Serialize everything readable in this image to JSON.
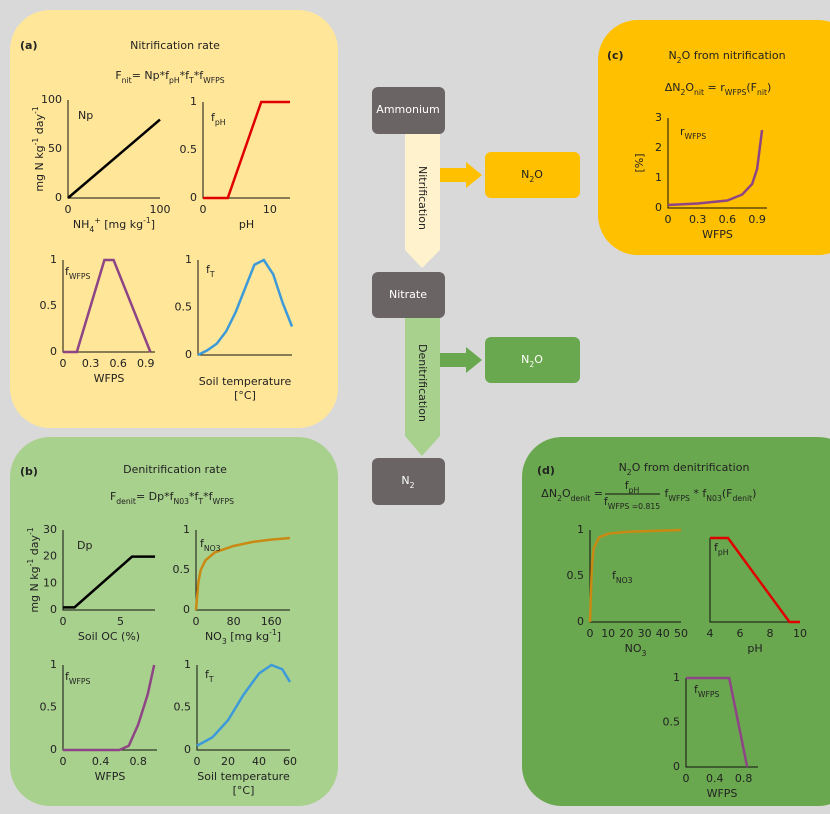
{
  "panels": [
    {
      "label": "(a)",
      "title": "Nitrification rate",
      "formula": [
        "F",
        {
          "sub": "nit"
        },
        "= Np*f",
        {
          "sub": "pH"
        },
        "*f",
        {
          "sub": "T"
        },
        "*f",
        {
          "sub": "WFPS"
        }
      ],
      "plots": [
        {
          "label": [
            "Np"
          ],
          "ylabel": [
            "mg N kg",
            {
              "sup": "-1"
            },
            " day",
            {
              "sup": "-1"
            }
          ],
          "xlabel": [
            [
              "NH",
              {
                "sub": "4"
              },
              {
                "sup": "+"
              },
              " [mg kg",
              {
                "sup": "-1"
              },
              "]"
            ]
          ],
          "xlim": [
            0,
            100
          ],
          "ylim": [
            0,
            100
          ],
          "xticks": [
            0,
            100
          ],
          "yticks": [
            0,
            50,
            100
          ],
          "x": [
            0,
            100
          ],
          "y": [
            0,
            80
          ],
          "color": "#000000"
        },
        {
          "label": [
            "f",
            {
              "sub": "pH"
            }
          ],
          "xlabel": [
            [
              "pH"
            ]
          ],
          "xlim": [
            0,
            13
          ],
          "ylim": [
            0,
            1
          ],
          "xticks": [
            0,
            10
          ],
          "yticks": [
            0,
            0.5,
            1
          ],
          "x": [
            0,
            3.7,
            8.7,
            13
          ],
          "y": [
            0,
            0,
            1,
            1
          ],
          "color": "#e00000"
        },
        {
          "label": [
            "f",
            {
              "sub": "WFPS"
            }
          ],
          "xlabel": [
            [
              "WFPS"
            ]
          ],
          "xlim": [
            0,
            1
          ],
          "ylim": [
            0,
            1
          ],
          "xticks": [
            0,
            0.3,
            0.6,
            0.9
          ],
          "yticks": [
            0,
            0.5,
            1
          ],
          "x": [
            0,
            0.15,
            0.45,
            0.55,
            0.95
          ],
          "y": [
            0,
            0,
            1,
            1,
            0
          ],
          "color": "#8e4585"
        },
        {
          "label": [
            "f",
            {
              "sub": "T"
            }
          ],
          "xlabel": [
            [
              "Soil temperature"
            ],
            [
              "[°C]"
            ]
          ],
          "xlim": [
            0,
            50
          ],
          "ylim": [
            0,
            1
          ],
          "yticks": [
            0,
            0.5,
            1
          ],
          "x": [
            0,
            5,
            10,
            15,
            20,
            25,
            30,
            35,
            40,
            45,
            50
          ],
          "y": [
            0,
            0.05,
            0.12,
            0.25,
            0.45,
            0.7,
            0.95,
            1,
            0.85,
            0.55,
            0.3
          ],
          "color": "#3d9ad9"
        }
      ]
    },
    {
      "label": "(b)",
      "title": "Denitrification rate",
      "formula": [
        "F",
        {
          "sub": "denit"
        },
        "= Dp*f",
        {
          "sub": "N03"
        },
        "*f",
        {
          "sub": "T"
        },
        "*f",
        {
          "sub": "WFPS"
        }
      ],
      "plots": [
        {
          "label": [
            "Dp"
          ],
          "ylabel": [
            "mg N kg",
            {
              "sup": "-1"
            },
            " day",
            {
              "sup": "-1"
            }
          ],
          "xlabel": [
            [
              "Soil OC (%)"
            ]
          ],
          "xlim": [
            0,
            8
          ],
          "ylim": [
            0,
            30
          ],
          "xticks": [
            0,
            5
          ],
          "yticks": [
            0,
            10,
            20,
            30
          ],
          "x": [
            0,
            1,
            6,
            8
          ],
          "y": [
            1,
            1,
            20,
            20
          ],
          "color": "#000000"
        },
        {
          "label": [
            "f",
            {
              "sub": "NO3"
            }
          ],
          "xlabel": [
            [
              "NO",
              {
                "sub": "3"
              },
              " [mg kg",
              {
                "sup": "-1"
              },
              "]"
            ]
          ],
          "xlim": [
            0,
            200
          ],
          "ylim": [
            0,
            1
          ],
          "xticks": [
            0,
            80,
            160
          ],
          "yticks": [
            0,
            0.5,
            1
          ],
          "x": [
            0,
            5,
            10,
            20,
            40,
            80,
            120,
            160,
            200
          ],
          "y": [
            0,
            0.35,
            0.5,
            0.62,
            0.72,
            0.8,
            0.85,
            0.88,
            0.9
          ],
          "color": "#c88a12"
        },
        {
          "label": [
            "f",
            {
              "sub": "WFPS"
            }
          ],
          "xlabel": [
            [
              "WFPS"
            ]
          ],
          "xlim": [
            0,
            1
          ],
          "ylim": [
            0,
            1
          ],
          "xticks": [
            0,
            0.4,
            0.8
          ],
          "yticks": [
            0,
            0.5,
            1
          ],
          "x": [
            0,
            0.6,
            0.7,
            0.8,
            0.9,
            0.97
          ],
          "y": [
            0,
            0,
            0.05,
            0.3,
            0.65,
            1
          ],
          "color": "#8e4585"
        },
        {
          "label": [
            "f",
            {
              "sub": "T"
            }
          ],
          "xlabel": [
            [
              "Soil temperature"
            ],
            [
              "[°C]"
            ]
          ],
          "xlim": [
            0,
            60
          ],
          "ylim": [
            0,
            1
          ],
          "xticks": [
            0,
            20,
            40,
            60
          ],
          "yticks": [
            0,
            0.5,
            1
          ],
          "x": [
            0,
            10,
            20,
            30,
            40,
            48,
            55,
            60
          ],
          "y": [
            0.05,
            0.15,
            0.35,
            0.65,
            0.9,
            1,
            0.95,
            0.8
          ],
          "color": "#3d9ad9"
        }
      ]
    },
    {
      "label": "(c)",
      "title": [
        "N",
        {
          "sub": "2"
        },
        "O from nitrification"
      ],
      "formula": [
        "ΔN",
        {
          "sub": "2"
        },
        "O",
        {
          "sub": "nit"
        },
        " = r",
        {
          "sub": "WFPS"
        },
        "(F",
        {
          "sub": "nit"
        },
        ")"
      ],
      "plots": [
        {
          "label": [
            "r",
            {
              "sub": "WFPS"
            }
          ],
          "ylabel": [
            "[%]"
          ],
          "xlabel": [
            [
              "WFPS"
            ]
          ],
          "xlim": [
            0,
            1
          ],
          "ylim": [
            0,
            3
          ],
          "xticks": [
            0,
            0.3,
            0.6,
            0.9
          ],
          "yticks": [
            0,
            1,
            2,
            3
          ],
          "x": [
            0,
            0.3,
            0.6,
            0.75,
            0.85,
            0.9,
            0.95
          ],
          "y": [
            0.1,
            0.15,
            0.25,
            0.45,
            0.8,
            1.3,
            2.6
          ],
          "color": "#8e4585"
        }
      ]
    },
    {
      "label": "(d)",
      "title": [
        "N",
        {
          "sub": "2"
        },
        "O from denitrification"
      ],
      "formula": {
        "lhs": [
          "ΔN",
          {
            "sub": "2"
          },
          "O",
          {
            "sub": "denit"
          },
          " ="
        ],
        "numerator": [
          "f",
          {
            "sub": "pH"
          }
        ],
        "denominator": [
          "f",
          {
            "sub": "WFPS =0.815"
          }
        ],
        "rhs": [
          " f",
          {
            "sub": "WFPS"
          },
          " * f",
          {
            "sub": "N03"
          },
          "(F",
          {
            "sub": "denit"
          },
          ")"
        ]
      },
      "plots": [
        {
          "label": [
            "f",
            {
              "sub": "NO3"
            }
          ],
          "xlabel": [
            [
              "NO",
              {
                "sub": "3"
              }
            ]
          ],
          "xlim": [
            0,
            50
          ],
          "ylim": [
            0,
            1
          ],
          "xticks": [
            0,
            10,
            20,
            30,
            40,
            50
          ],
          "yticks": [
            0,
            0.5,
            1
          ],
          "x": [
            0,
            1,
            2,
            5,
            10,
            20,
            50
          ],
          "y": [
            0,
            0.6,
            0.8,
            0.92,
            0.96,
            0.98,
            1
          ],
          "color": "#c88a12"
        },
        {
          "label": [
            "f",
            {
              "sub": "pH"
            }
          ],
          "xlabel": [
            [
              "pH"
            ]
          ],
          "xlim": [
            4,
            10
          ],
          "ylim": [
            0,
            1
          ],
          "xticks": [
            4,
            6,
            8,
            10
          ],
          "x": [
            4,
            5.2,
            9.3,
            10
          ],
          "y": [
            1,
            1,
            0,
            0
          ],
          "color": "#e00000"
        },
        {
          "label": [
            "f",
            {
              "sub": "WFPS"
            }
          ],
          "xlabel": [
            [
              "WFPS"
            ]
          ],
          "xlim": [
            0,
            1
          ],
          "ylim": [
            0,
            1
          ],
          "xticks": [
            0,
            0.4,
            0.8
          ],
          "yticks": [
            0,
            0.5,
            1
          ],
          "x": [
            0,
            0.6,
            0.85
          ],
          "y": [
            1,
            1,
            0
          ],
          "color": "#8e4585"
        }
      ]
    }
  ],
  "flow": {
    "nodes": [
      [
        "Ammonium"
      ],
      [
        "Nitrate"
      ],
      [
        "N",
        {
          "sub": "2"
        }
      ]
    ],
    "processes": [
      "Nitrification",
      "Denitrification"
    ],
    "products": [
      [
        "N",
        {
          "sub": "2"
        },
        "O"
      ],
      [
        "N",
        {
          "sub": "2"
        },
        "O"
      ]
    ]
  }
}
